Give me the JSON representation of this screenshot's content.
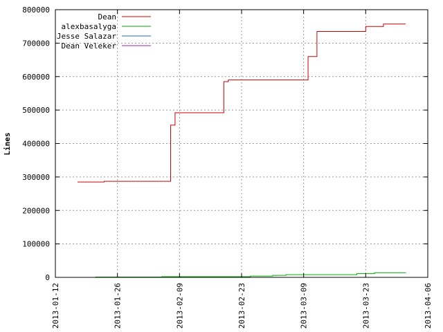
{
  "chart_data": {
    "type": "line",
    "title": "",
    "xlabel": "",
    "ylabel": "Lines",
    "ylim": [
      0,
      800000
    ],
    "xlim": [
      "2013-01-12",
      "2013-04-06"
    ],
    "grid": true,
    "legend_position": "top-left",
    "y_ticks": [
      0,
      100000,
      200000,
      300000,
      400000,
      500000,
      600000,
      700000,
      800000
    ],
    "y_tick_labels": [
      "0",
      "100000",
      "200000",
      "300000",
      "400000",
      "500000",
      "600000",
      "700000",
      "800000"
    ],
    "x_ticks": [
      "2013-01-12",
      "2013-01-26",
      "2013-02-09",
      "2013-02-23",
      "2013-03-09",
      "2013-03-23",
      "2013-04-06"
    ],
    "series": [
      {
        "name": "Dean",
        "color": "#cc0000",
        "step": true,
        "points": [
          [
            "2013-01-17",
            285000
          ],
          [
            "2013-01-23",
            287000
          ],
          [
            "2013-02-04",
            287000
          ],
          [
            "2013-02-07",
            287000
          ],
          [
            "2013-02-07",
            455000
          ],
          [
            "2013-02-08",
            455000
          ],
          [
            "2013-02-08",
            492000
          ],
          [
            "2013-02-19",
            585000
          ],
          [
            "2013-02-20",
            590000
          ],
          [
            "2013-03-10",
            590000
          ],
          [
            "2013-03-10",
            660000
          ],
          [
            "2013-03-12",
            660000
          ],
          [
            "2013-03-12",
            735000
          ],
          [
            "2013-03-23",
            735000
          ],
          [
            "2013-03-23",
            750000
          ],
          [
            "2013-03-26",
            750000
          ],
          [
            "2013-03-27",
            757000
          ],
          [
            "2013-04-01",
            757000
          ]
        ]
      },
      {
        "name": "alexbasalyga",
        "color": "#00aa00",
        "step": true,
        "points": [
          [
            "2013-01-21",
            1000
          ],
          [
            "2013-02-05",
            2000
          ],
          [
            "2013-02-25",
            4000
          ],
          [
            "2013-03-02",
            6000
          ],
          [
            "2013-03-05",
            8000
          ],
          [
            "2013-03-21",
            11000
          ],
          [
            "2013-03-25",
            14000
          ],
          [
            "2013-04-01",
            15000
          ]
        ]
      },
      {
        "name": "Jesse Salazar",
        "color": "#1f6ebf",
        "step": true,
        "points": []
      },
      {
        "name": "Dean Veleker",
        "color": "#9b1fb3",
        "step": true,
        "points": []
      }
    ]
  }
}
